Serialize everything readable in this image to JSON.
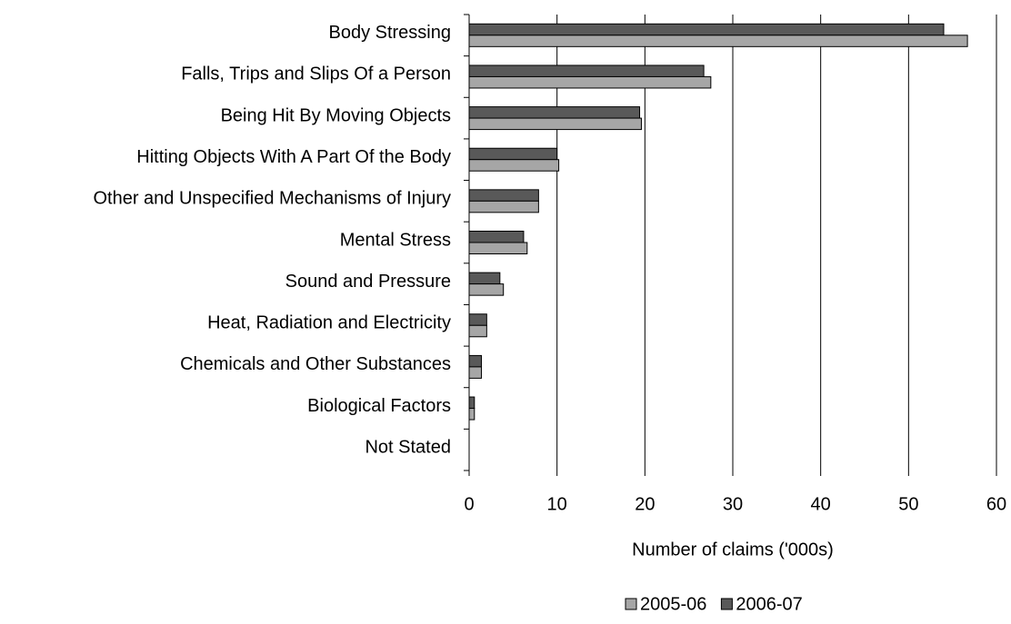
{
  "chart_data": {
    "type": "barh",
    "x_label": "Number of claims ('000s)",
    "categories": [
      "Body Stressing",
      "Falls, Trips and Slips Of a Person",
      "Being Hit By Moving Objects",
      "Hitting Objects With A Part Of the Body",
      "Other and Unspecified Mechanisms of Injury",
      "Mental Stress",
      "Sound and Pressure",
      "Heat, Radiation and Electricity",
      "Chemicals and Other Substances",
      "Biological Factors",
      "Not Stated"
    ],
    "series": [
      {
        "name": "2005-06",
        "color": "#a6a6a6",
        "values": [
          56.7,
          27.5,
          19.6,
          10.2,
          7.9,
          6.6,
          3.9,
          2.0,
          1.4,
          0.6,
          0
        ]
      },
      {
        "name": "2006-07",
        "color": "#595959",
        "values": [
          54.0,
          26.7,
          19.4,
          10.0,
          7.9,
          6.2,
          3.5,
          2.0,
          1.4,
          0.6,
          0
        ]
      }
    ],
    "xlim": [
      0,
      60
    ],
    "xticks": [
      0,
      10,
      20,
      30,
      40,
      50,
      60
    ],
    "grid": true,
    "legend": "bottom"
  }
}
